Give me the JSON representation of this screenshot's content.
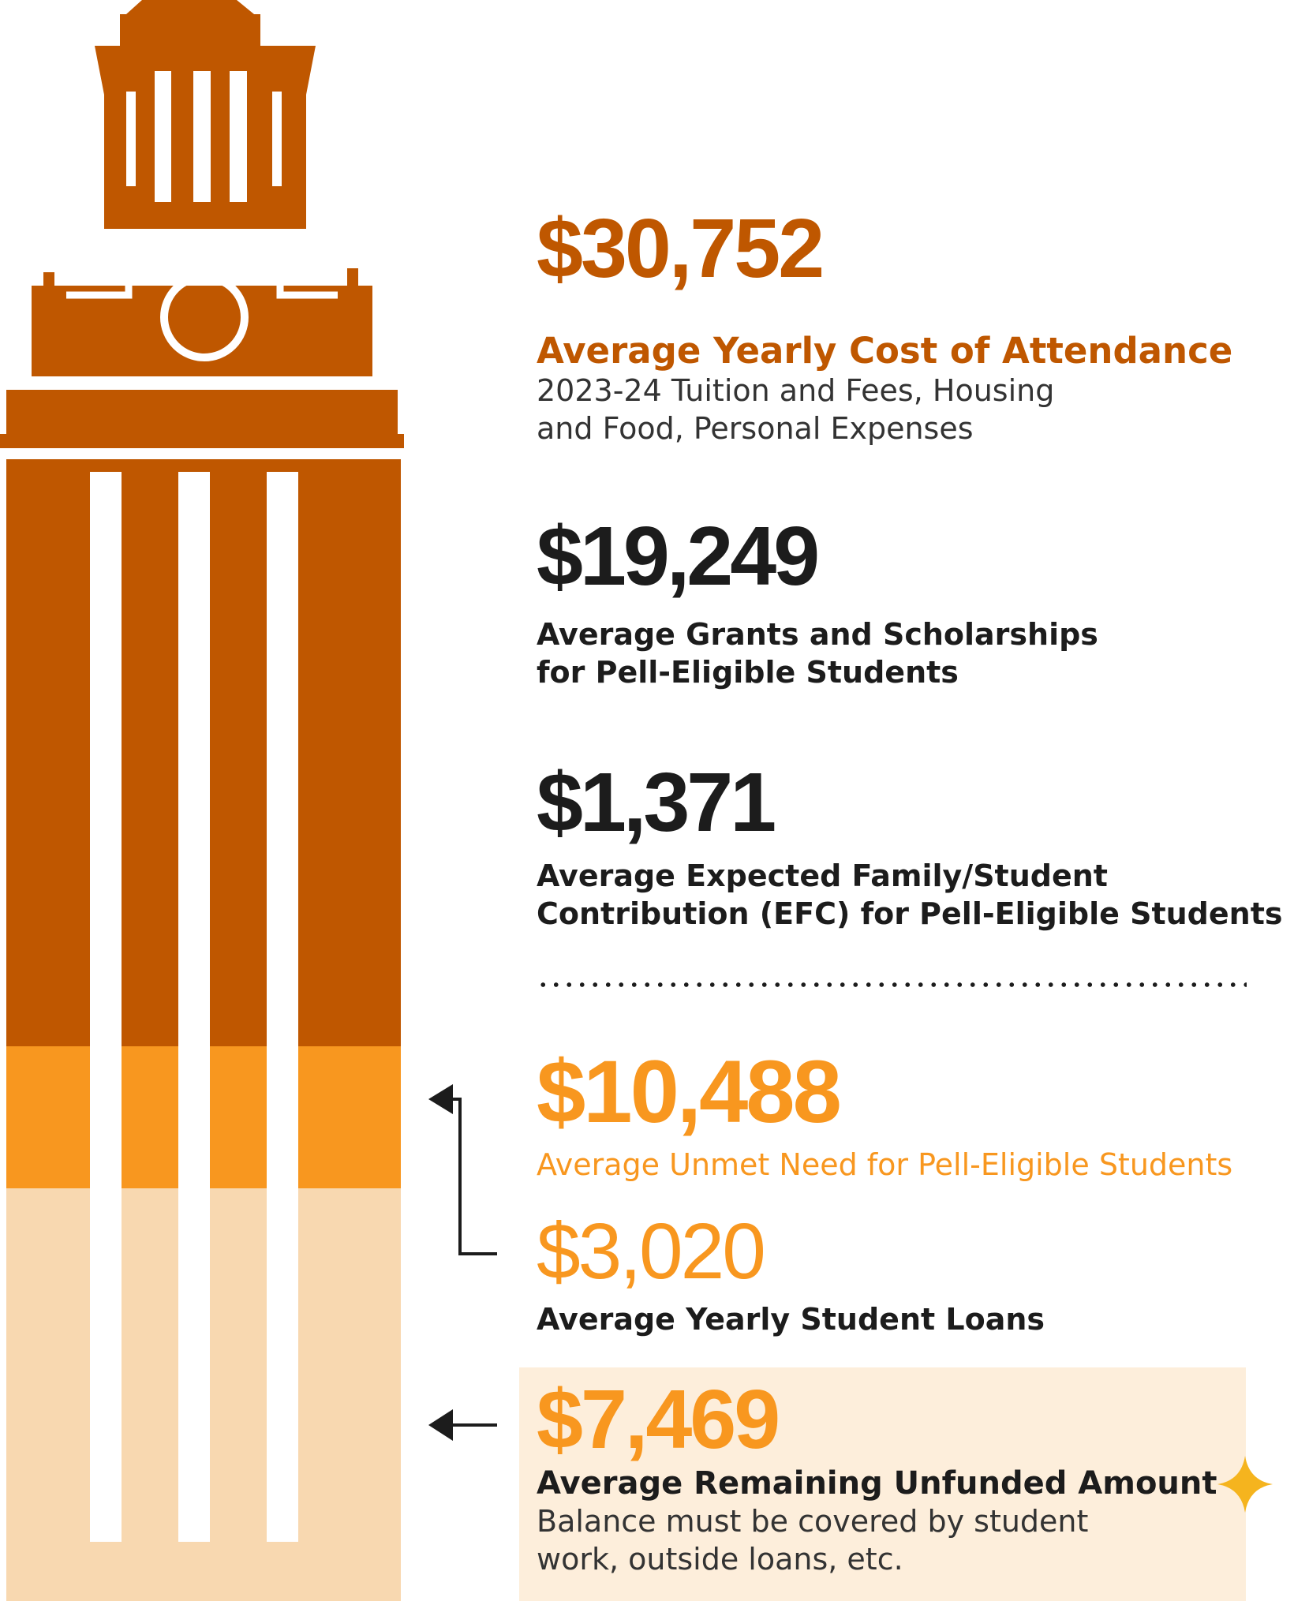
{
  "colors": {
    "burnt_orange": "#bf5700",
    "amber": "#f8971f",
    "light_peach": "#f8d8b0",
    "box_cream": "#fdeedb",
    "dark_text": "#1c1c1c",
    "sparkle": "#f5b41e"
  },
  "tower": {
    "icon": "ut-tower-illustration",
    "bands": [
      {
        "name": "cost-covered",
        "color": "#bf5700"
      },
      {
        "name": "unmet-need",
        "color": "#f8971f"
      },
      {
        "name": "remaining-unfunded",
        "color": "#f8d8b0"
      }
    ]
  },
  "stats": {
    "cost": {
      "amount": "$30,752",
      "label": "Average Yearly Cost of Attendance",
      "detail_line1": "2023-24 Tuition and Fees, Housing",
      "detail_line2": "and Food, Personal Expenses"
    },
    "grants": {
      "amount": "$19,249",
      "label_line1": "Average Grants and Scholarships",
      "label_line2": "for Pell-Eligible Students"
    },
    "efc": {
      "amount": "$1,371",
      "label_line1": "Average Expected Family/Student",
      "label_line2": "Contribution (EFC) for Pell-Eligible Students"
    },
    "unmet": {
      "amount": "$10,488",
      "label": "Average Unmet Need for Pell-Eligible Students"
    },
    "loans": {
      "amount": "$3,020",
      "label": "Average Yearly Student Loans"
    },
    "remaining": {
      "amount": "$7,469",
      "label": "Average Remaining Unfunded Amount",
      "detail_line1": "Balance must be covered by student",
      "detail_line2": "work, outside loans, etc."
    }
  },
  "icons": {
    "bracket_arrow": "left-arrow-icon",
    "straight_arrow": "left-arrow-icon",
    "sparkle": "sparkle-icon"
  }
}
